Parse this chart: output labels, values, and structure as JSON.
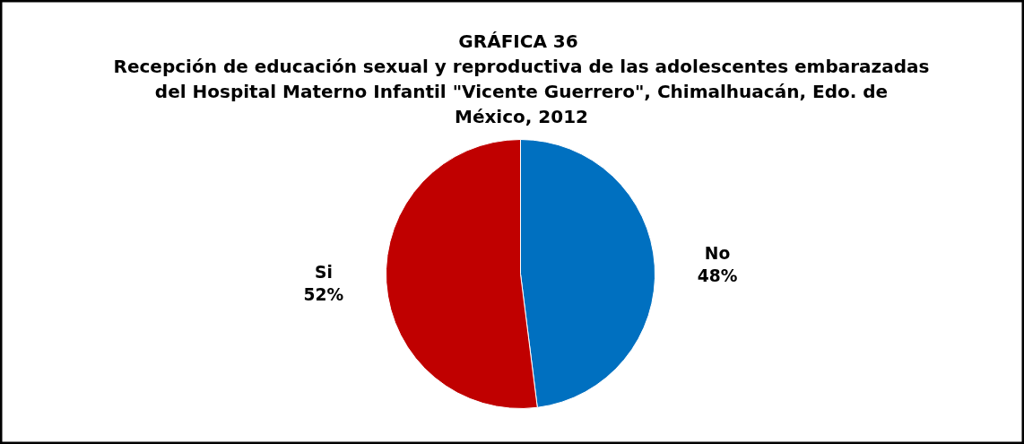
{
  "chart_data": {
    "type": "pie",
    "title": "GRÁFICA  36",
    "subtitle": "Recepción de educación sexual y reproductiva de las adolescentes embarazadas del Hospital Materno Infantil \"Vicente Guerrero\", Chimalhuacán, Edo. de México, 2012",
    "categories": [
      "No",
      "Si"
    ],
    "values": [
      48,
      52
    ],
    "value_labels": [
      "48%",
      "52%"
    ],
    "colors": [
      "#0070c0",
      "#c00000"
    ]
  }
}
